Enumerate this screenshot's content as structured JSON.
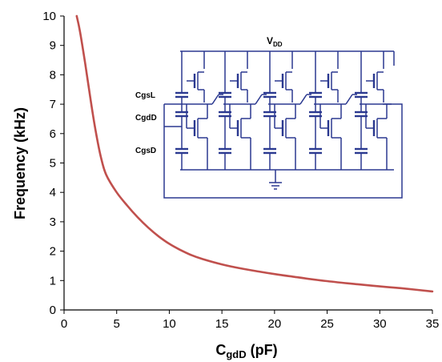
{
  "chart_data": {
    "type": "line",
    "title": "",
    "xlabel_main": "C",
    "xlabel_sub": "gdD",
    "xlabel_unit": " (pF)",
    "ylabel": "Frequency (kHz)",
    "xlim": [
      0,
      35
    ],
    "ylim": [
      0,
      10
    ],
    "x_ticks": [
      "0",
      "5",
      "10",
      "15",
      "20",
      "25",
      "30",
      "35"
    ],
    "y_ticks": [
      "0",
      "1",
      "2",
      "3",
      "4",
      "5",
      "6",
      "7",
      "8",
      "9",
      "10"
    ],
    "grid": false,
    "legend": "none",
    "series": [
      {
        "color": "#c0504d",
        "x": [
          1.2,
          1.5,
          2,
          2.5,
          3,
          3.5,
          4,
          5,
          6,
          7,
          8,
          9,
          10,
          11,
          12,
          13,
          15,
          17,
          20,
          22,
          25,
          28,
          30,
          32,
          35
        ],
        "y": [
          10,
          9.5,
          8.4,
          7.2,
          6.1,
          5.2,
          4.6,
          4.0,
          3.55,
          3.15,
          2.8,
          2.5,
          2.25,
          2.05,
          1.88,
          1.75,
          1.55,
          1.4,
          1.22,
          1.12,
          0.98,
          0.87,
          0.8,
          0.74,
          0.63
        ]
      }
    ],
    "inset": {
      "supply_main": "V",
      "supply_sub": "DD",
      "cap_labels": [
        "CgsL",
        "CgdD",
        "CgsD"
      ],
      "color": "#2b3990"
    }
  }
}
